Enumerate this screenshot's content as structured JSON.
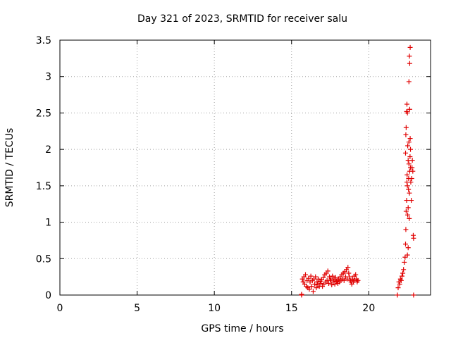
{
  "chart_data": {
    "type": "scatter",
    "title": "Day 321 of 2023, SRMTID for receiver salu",
    "xlabel": "GPS time / hours",
    "ylabel": "SRMTID / TECUs",
    "xlim": [
      0,
      24
    ],
    "ylim": [
      0,
      3.5
    ],
    "xticks": [
      0,
      5,
      10,
      15,
      20
    ],
    "yticks": [
      0,
      0.5,
      1,
      1.5,
      2,
      2.5,
      3,
      3.5
    ],
    "xtick_labels": [
      "0",
      "5",
      "10",
      "15",
      "20"
    ],
    "ytick_labels": [
      "0",
      "0.5",
      "1",
      "1.5",
      "2",
      "2.5",
      "3",
      "3.5"
    ],
    "grid": true,
    "legend": "none",
    "series": [
      {
        "marker": "+",
        "color": "#e00000",
        "points": [
          [
            15.65,
            0.0
          ],
          [
            15.65,
            0.01
          ],
          [
            15.7,
            0.22
          ],
          [
            15.75,
            0.18
          ],
          [
            15.8,
            0.25
          ],
          [
            15.85,
            0.15
          ],
          [
            15.9,
            0.28
          ],
          [
            15.95,
            0.12
          ],
          [
            16.0,
            0.2
          ],
          [
            16.05,
            0.1
          ],
          [
            16.1,
            0.23
          ],
          [
            16.15,
            0.08
          ],
          [
            16.2,
            0.18
          ],
          [
            16.25,
            0.26
          ],
          [
            16.3,
            0.12
          ],
          [
            16.35,
            0.2
          ],
          [
            16.4,
            0.05
          ],
          [
            16.45,
            0.22
          ],
          [
            16.5,
            0.15
          ],
          [
            16.55,
            0.25
          ],
          [
            16.6,
            0.1
          ],
          [
            16.65,
            0.18
          ],
          [
            16.7,
            0.14
          ],
          [
            16.75,
            0.22
          ],
          [
            16.8,
            0.12
          ],
          [
            16.85,
            0.19
          ],
          [
            16.9,
            0.16
          ],
          [
            16.95,
            0.21
          ],
          [
            17.0,
            0.12
          ],
          [
            17.05,
            0.24
          ],
          [
            17.1,
            0.15
          ],
          [
            17.15,
            0.28
          ],
          [
            17.2,
            0.18
          ],
          [
            17.25,
            0.3
          ],
          [
            17.3,
            0.2
          ],
          [
            17.35,
            0.33
          ],
          [
            17.4,
            0.16
          ],
          [
            17.45,
            0.25
          ],
          [
            17.5,
            0.2
          ],
          [
            17.55,
            0.22
          ],
          [
            17.6,
            0.14
          ],
          [
            17.65,
            0.26
          ],
          [
            17.7,
            0.18
          ],
          [
            17.75,
            0.22
          ],
          [
            17.8,
            0.15
          ],
          [
            17.85,
            0.24
          ],
          [
            17.9,
            0.19
          ],
          [
            17.95,
            0.2
          ],
          [
            18.0,
            0.16
          ],
          [
            18.05,
            0.22
          ],
          [
            18.1,
            0.18
          ],
          [
            18.15,
            0.25
          ],
          [
            18.2,
            0.2
          ],
          [
            18.25,
            0.28
          ],
          [
            18.3,
            0.22
          ],
          [
            18.35,
            0.3
          ],
          [
            18.4,
            0.2
          ],
          [
            18.45,
            0.32
          ],
          [
            18.5,
            0.25
          ],
          [
            18.55,
            0.35
          ],
          [
            18.6,
            0.22
          ],
          [
            18.65,
            0.38
          ],
          [
            18.7,
            0.3
          ],
          [
            18.75,
            0.25
          ],
          [
            18.8,
            0.2
          ],
          [
            18.85,
            0.18
          ],
          [
            18.9,
            0.15
          ],
          [
            18.95,
            0.22
          ],
          [
            19.0,
            0.18
          ],
          [
            19.05,
            0.26
          ],
          [
            19.1,
            0.2
          ],
          [
            19.15,
            0.28
          ],
          [
            19.2,
            0.22
          ],
          [
            19.25,
            0.18
          ],
          [
            19.3,
            0.2
          ],
          [
            21.85,
            0.0
          ],
          [
            21.9,
            0.1
          ],
          [
            21.95,
            0.18
          ],
          [
            22.0,
            0.15
          ],
          [
            22.05,
            0.22
          ],
          [
            22.1,
            0.2
          ],
          [
            22.15,
            0.26
          ],
          [
            22.2,
            0.3
          ],
          [
            22.25,
            0.35
          ],
          [
            22.3,
            0.45
          ],
          [
            22.35,
            0.52
          ],
          [
            22.38,
            0.7
          ],
          [
            22.4,
            0.9
          ],
          [
            22.42,
            1.15
          ],
          [
            22.45,
            1.3
          ],
          [
            22.47,
            1.55
          ],
          [
            22.48,
            1.65
          ],
          [
            22.5,
            1.5
          ],
          [
            22.52,
            1.1
          ],
          [
            22.55,
            1.2
          ],
          [
            22.57,
            1.45
          ],
          [
            22.58,
            1.6
          ],
          [
            22.6,
            1.8
          ],
          [
            22.62,
            1.05
          ],
          [
            22.63,
            1.4
          ],
          [
            22.65,
            1.7
          ],
          [
            22.67,
            1.9
          ],
          [
            22.7,
            1.75
          ],
          [
            22.72,
            1.55
          ],
          [
            22.75,
            1.3
          ],
          [
            22.78,
            1.6
          ],
          [
            22.8,
            1.75
          ],
          [
            22.82,
            1.85
          ],
          [
            22.85,
            1.7
          ],
          [
            22.88,
            0.82
          ],
          [
            22.9,
            0.78
          ],
          [
            22.38,
            1.95
          ],
          [
            22.4,
            2.2
          ],
          [
            22.42,
            2.3
          ],
          [
            22.45,
            2.52
          ],
          [
            22.47,
            2.62
          ],
          [
            22.5,
            2.5
          ],
          [
            22.52,
            2.05
          ],
          [
            22.55,
            1.85
          ],
          [
            22.6,
            2.1
          ],
          [
            22.65,
            2.55
          ],
          [
            22.68,
            2.15
          ],
          [
            22.7,
            2.0
          ],
          [
            22.6,
            2.93
          ],
          [
            22.65,
            3.18
          ],
          [
            22.63,
            3.28
          ],
          [
            22.68,
            3.4
          ],
          [
            22.5,
            0.55
          ],
          [
            22.55,
            0.65
          ],
          [
            22.9,
            0.0
          ]
        ]
      }
    ]
  }
}
